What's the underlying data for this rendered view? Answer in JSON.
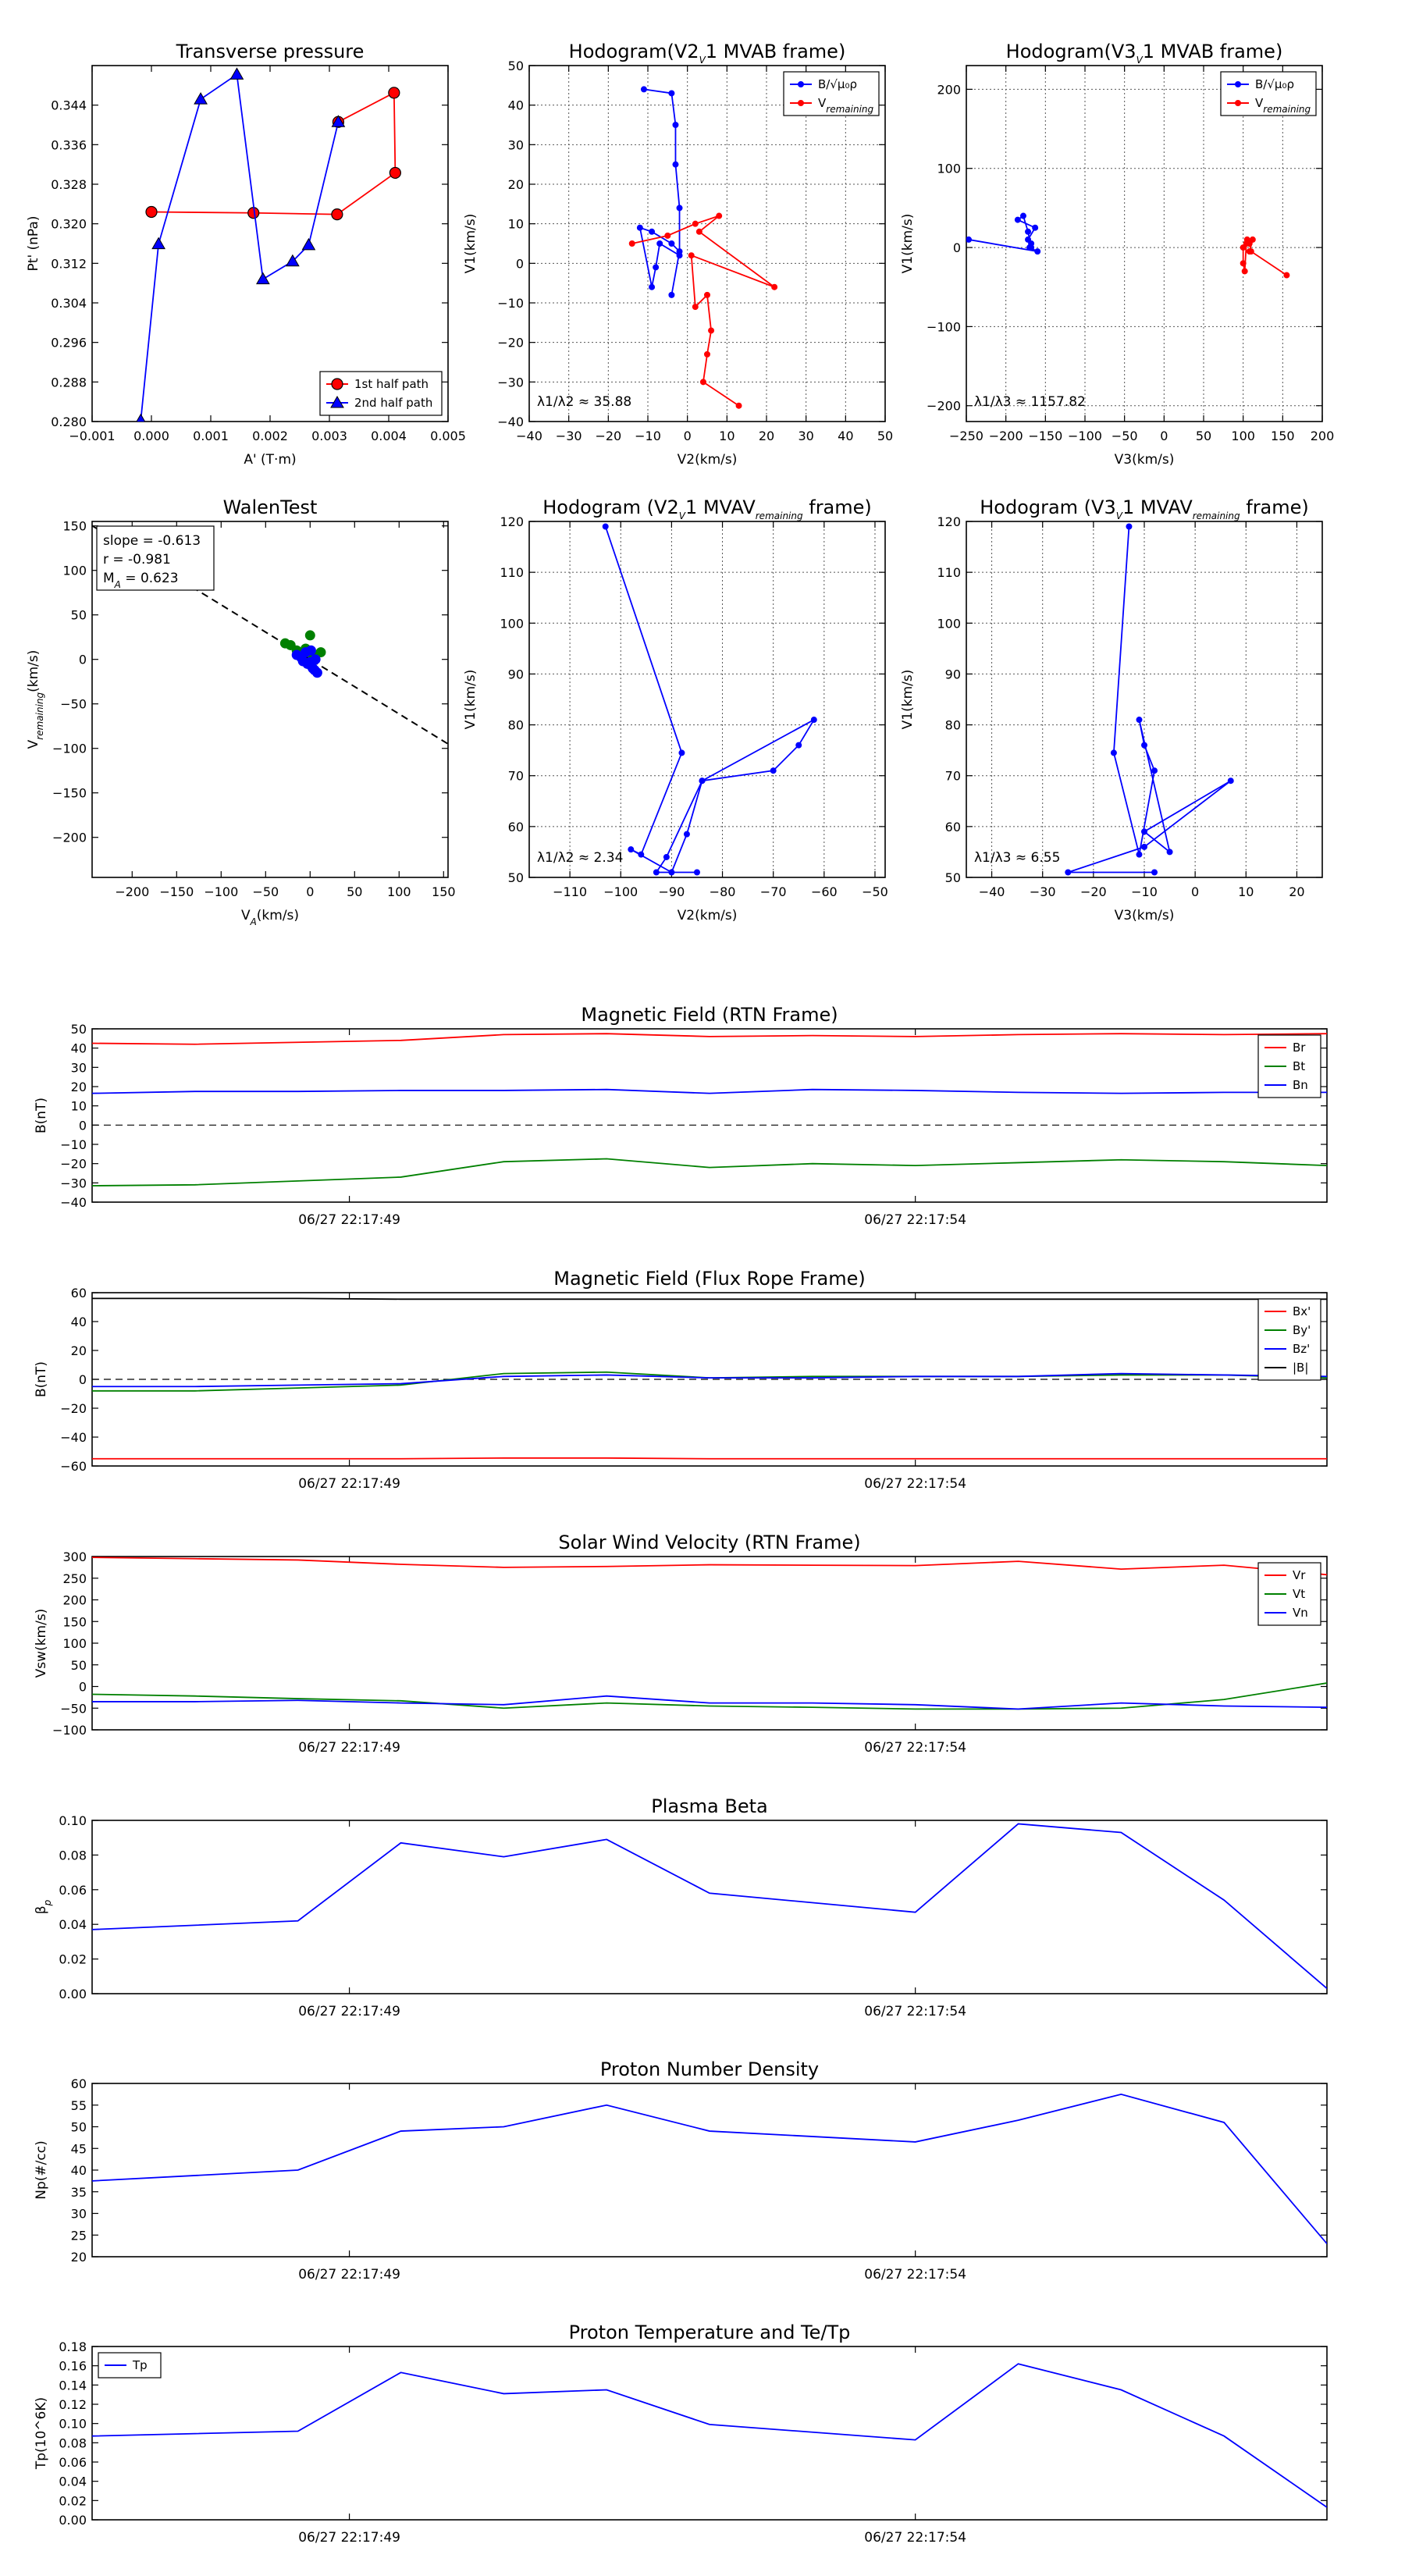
{
  "chart_data": [
    {
      "id": "pt",
      "type": "line",
      "title": "Transverse pressure",
      "xlabel": "A' (T·m)",
      "ylabel": "Pt' (nPa)",
      "xlim": [
        -0.001,
        0.005
      ],
      "ylim": [
        0.28,
        0.352
      ],
      "xticks": [
        -0.001,
        0.0,
        0.001,
        0.002,
        0.003,
        0.004,
        0.005
      ],
      "xtick_labels": [
        "−0.001",
        "0.000",
        "0.001",
        "0.002",
        "0.003",
        "0.004",
        "0.005"
      ],
      "yticks": [
        0.28,
        0.288,
        0.296,
        0.304,
        0.312,
        0.32,
        0.328,
        0.336,
        0.344
      ],
      "ytick_labels": [
        "0.280",
        "0.288",
        "0.296",
        "0.304",
        "0.312",
        "0.320",
        "0.328",
        "0.336",
        "0.344"
      ],
      "grid": false,
      "legend": "lower-right",
      "series": [
        {
          "name": "1st half path",
          "color": "#ff0000",
          "marker": "circle",
          "x": [
            0.0,
            0.00172,
            0.00313,
            0.00411,
            0.00409,
            0.00315
          ],
          "y": [
            0.3224,
            0.3222,
            0.3219,
            0.3303,
            0.3465,
            0.3406
          ]
        },
        {
          "name": "2nd half path",
          "color": "#0000ff",
          "marker": "triangle",
          "x": [
            -0.00018,
            0.00012,
            0.00083,
            0.00144,
            0.00188,
            0.00238,
            0.00265,
            0.00315
          ],
          "y": [
            0.2802,
            0.3159,
            0.3452,
            0.3502,
            0.3088,
            0.3124,
            0.3157,
            0.3406
          ]
        }
      ]
    },
    {
      "id": "h1",
      "type": "line",
      "title": "Hodogram(V2_V1 MVAB frame)",
      "xlabel": "V2(km/s)",
      "ylabel": "V1(km/s)",
      "xlim": [
        -40,
        50
      ],
      "ylim": [
        -40,
        50
      ],
      "xticks": [
        -40,
        -30,
        -20,
        -10,
        0,
        10,
        20,
        30,
        40,
        50
      ],
      "xtick_labels": [
        "−40",
        "−30",
        "−20",
        "−10",
        "0",
        "10",
        "20",
        "30",
        "40",
        "50"
      ],
      "yticks": [
        -40,
        -30,
        -20,
        -10,
        0,
        10,
        20,
        30,
        40,
        50
      ],
      "ytick_labels": [
        "−40",
        "−30",
        "−20",
        "−10",
        "0",
        "10",
        "20",
        "30",
        "40",
        "50"
      ],
      "grid": true,
      "legend": "top-right",
      "annotation": "λ1/λ2 ≈ 35.88",
      "series": [
        {
          "name": "B/√μ0ρ",
          "color": "#0000ff",
          "marker": "dot",
          "x": [
            -11,
            -4,
            -3,
            -3,
            -2,
            -2,
            -7,
            -8,
            -9,
            -12,
            -9,
            -4,
            -2,
            -4
          ],
          "y": [
            44,
            43,
            35,
            25,
            14,
            2,
            5,
            -1,
            -6,
            9,
            8,
            5,
            3,
            -8
          ]
        },
        {
          "name": "V_remaining",
          "color": "#ff0000",
          "marker": "dot",
          "x": [
            -14,
            -5,
            2,
            8,
            3,
            22,
            1,
            2,
            5,
            6,
            5,
            4,
            13
          ],
          "y": [
            5,
            7,
            10,
            12,
            8,
            -6,
            2,
            -11,
            -8,
            -17,
            -23,
            -30,
            -36
          ]
        }
      ]
    },
    {
      "id": "h2",
      "type": "line",
      "title": "Hodogram(V3_V1 MVAB frame)",
      "xlabel": "V3(km/s)",
      "ylabel": "V1(km/s)",
      "xlim": [
        -250,
        200
      ],
      "ylim": [
        -220,
        230
      ],
      "xticks": [
        -250,
        -200,
        -150,
        -100,
        -50,
        0,
        50,
        100,
        150,
        200
      ],
      "xtick_labels": [
        "−250",
        "−200",
        "−150",
        "−100",
        "−50",
        "0",
        "50",
        "100",
        "150",
        "200"
      ],
      "yticks": [
        -200,
        -100,
        0,
        100,
        200
      ],
      "ytick_labels": [
        "−200",
        "−100",
        "0",
        "100",
        "200"
      ],
      "grid": true,
      "legend": "top-right",
      "annotation": "λ1/λ3 ≈ 1157.82",
      "series": [
        {
          "name": "B/√μ0ρ",
          "color": "#0000ff",
          "marker": "dot",
          "x": [
            -247,
            -160,
            -170,
            -168,
            -172,
            -163,
            -185,
            -178,
            -172,
            -168
          ],
          "y": [
            10,
            -5,
            0,
            5,
            10,
            25,
            35,
            40,
            20,
            0
          ]
        },
        {
          "name": "V_remaining",
          "color": "#ff0000",
          "marker": "dot",
          "x": [
            155,
            110,
            108,
            105,
            100,
            100,
            102,
            104,
            112,
            108
          ],
          "y": [
            -35,
            -5,
            5,
            10,
            0,
            -20,
            -30,
            5,
            10,
            -5
          ]
        }
      ]
    },
    {
      "id": "walen",
      "type": "scatter",
      "title": "WalenTest",
      "xlabel": "V_A(km/s)",
      "ylabel": "V_remaining(km/s)",
      "xlim": [
        -245,
        155
      ],
      "ylim": [
        -245,
        155
      ],
      "xticks": [
        -200,
        -150,
        -100,
        -50,
        0,
        50,
        100,
        150
      ],
      "xtick_labels": [
        "−200",
        "−150",
        "−100",
        "−50",
        "0",
        "50",
        "100",
        "150"
      ],
      "yticks": [
        -200,
        -150,
        -100,
        -50,
        0,
        50,
        100,
        150
      ],
      "ytick_labels": [
        "−200",
        "−150",
        "−100",
        "−50",
        "0",
        "50",
        "100",
        "150"
      ],
      "grid": false,
      "fit": {
        "slope": -0.613,
        "x": [
          -245,
          155
        ]
      },
      "stats": [
        "slope = -0.613",
        "r = -0.981",
        "M_A = 0.623"
      ],
      "series": [
        {
          "name": "green",
          "color": "#008000",
          "x": [
            -28,
            -22,
            -15,
            0,
            12,
            3,
            -5
          ],
          "y": [
            18,
            16,
            10,
            27,
            8,
            4,
            12
          ]
        },
        {
          "name": "blue",
          "color": "#0000ff",
          "x": [
            -15,
            -10,
            -8,
            -5,
            0,
            2,
            5,
            8,
            -3,
            3,
            6,
            1
          ],
          "y": [
            5,
            2,
            -2,
            8,
            -3,
            -8,
            -12,
            -15,
            -5,
            -10,
            0,
            10
          ]
        }
      ]
    },
    {
      "id": "h3",
      "type": "line",
      "title": "Hodogram (V2_V1 MVAV_remaining frame)",
      "xlabel": "V2(km/s)",
      "ylabel": "V1(km/s)",
      "xlim": [
        -118,
        -48
      ],
      "ylim": [
        50,
        120
      ],
      "xticks": [
        -110,
        -100,
        -90,
        -80,
        -70,
        -60,
        -50
      ],
      "xtick_labels": [
        "−110",
        "−100",
        "−90",
        "−80",
        "−70",
        "−60",
        "−50"
      ],
      "yticks": [
        50,
        60,
        70,
        80,
        90,
        100,
        110,
        120
      ],
      "ytick_labels": [
        "50",
        "60",
        "70",
        "80",
        "90",
        "100",
        "110",
        "120"
      ],
      "grid": true,
      "legend": "none",
      "annotation": "λ1/λ2 ≈ 2.34",
      "series": [
        {
          "name": "V",
          "color": "#0000ff",
          "marker": "dot",
          "x": [
            -103,
            -88,
            -96,
            -98,
            -90,
            -87,
            -84,
            -70,
            -65,
            -62,
            -84,
            -91,
            -93,
            -85
          ],
          "y": [
            119,
            74.5,
            54.5,
            55.5,
            51,
            58.5,
            69,
            71,
            76,
            81,
            69,
            54,
            51,
            51
          ]
        }
      ]
    },
    {
      "id": "h4",
      "type": "line",
      "title": "Hodogram (V3_V1 MVAV_remaining frame)",
      "xlabel": "V3(km/s)",
      "ylabel": "V1(km/s)",
      "xlim": [
        -45,
        25
      ],
      "ylim": [
        50,
        120
      ],
      "xticks": [
        -40,
        -30,
        -20,
        -10,
        0,
        10,
        20
      ],
      "xtick_labels": [
        "−40",
        "−30",
        "−20",
        "−10",
        "0",
        "10",
        "20"
      ],
      "yticks": [
        50,
        60,
        70,
        80,
        90,
        100,
        110,
        120
      ],
      "ytick_labels": [
        "50",
        "60",
        "70",
        "80",
        "90",
        "100",
        "110",
        "120"
      ],
      "grid": true,
      "legend": "none",
      "annotation": "λ1/λ3 ≈ 6.55",
      "series": [
        {
          "name": "V",
          "color": "#0000ff",
          "marker": "dot",
          "x": [
            -13,
            -16,
            -11,
            -8,
            -10,
            -11,
            -5,
            -10,
            7,
            -10,
            -25,
            -8
          ],
          "y": [
            119,
            74.5,
            54.5,
            71,
            76,
            81,
            55,
            59,
            69,
            56,
            51,
            51
          ]
        }
      ]
    },
    {
      "id": "ts_b_rtn",
      "type": "line",
      "title": "Magnetic Field (RTN Frame)",
      "ylabel": "B(nT)",
      "ylim": [
        -40,
        50
      ],
      "yticks": [
        -40,
        -30,
        -20,
        -10,
        0,
        10,
        20,
        30,
        40,
        50
      ],
      "ytick_labels": [
        "−40",
        "−30",
        "−20",
        "−10",
        "0",
        "10",
        "20",
        "30",
        "40",
        "50"
      ],
      "xlim": [
        0,
        12
      ],
      "xticks": [
        2.5,
        8.0
      ],
      "xtick_labels": [
        "06/27 22:17:49",
        "06/27 22:17:54"
      ],
      "zero_line": true,
      "legend": "top-right",
      "series": [
        {
          "name": "Br",
          "color": "#ff0000",
          "y": [
            42.5,
            42,
            43,
            44,
            47,
            47.5,
            46,
            46.5,
            46,
            47,
            47.5,
            47,
            47.5
          ]
        },
        {
          "name": "Bt",
          "color": "#008000",
          "y": [
            -31.5,
            -31,
            -29,
            -27,
            -19,
            -17.5,
            -22,
            -20,
            -21,
            -19.5,
            -18,
            -19,
            -21
          ]
        },
        {
          "name": "Bn",
          "color": "#0000ff",
          "y": [
            16.5,
            17.5,
            17.5,
            18,
            18,
            18.5,
            16.5,
            18.5,
            18,
            17,
            16.5,
            17,
            17
          ]
        }
      ]
    },
    {
      "id": "ts_b_fr",
      "type": "line",
      "title": "Magnetic Field (Flux Rope Frame)",
      "ylabel": "B(nT)",
      "ylim": [
        -60,
        60
      ],
      "yticks": [
        -60,
        -40,
        -20,
        0,
        20,
        40,
        60
      ],
      "ytick_labels": [
        "−60",
        "−40",
        "−20",
        "0",
        "20",
        "40",
        "60"
      ],
      "xlim": [
        0,
        12
      ],
      "xticks": [
        2.5,
        8.0
      ],
      "xtick_labels": [
        "06/27 22:17:49",
        "06/27 22:17:54"
      ],
      "zero_line": true,
      "legend": "top-right",
      "series": [
        {
          "name": "Bx'",
          "color": "#ff0000",
          "y": [
            -55,
            -55,
            -55,
            -55,
            -54.5,
            -54.5,
            -55,
            -55,
            -55,
            -55,
            -55,
            -55,
            -55
          ]
        },
        {
          "name": "By'",
          "color": "#008000",
          "y": [
            -8,
            -8,
            -6,
            -4,
            4,
            5,
            1,
            2,
            2,
            2,
            3,
            3,
            1
          ]
        },
        {
          "name": "Bz'",
          "color": "#0000ff",
          "y": [
            -5,
            -5,
            -4,
            -3,
            2,
            3,
            1,
            1,
            2,
            2,
            4,
            3,
            2
          ]
        },
        {
          "name": "|B|",
          "color": "#000000",
          "y": [
            56,
            56,
            56,
            55.5,
            55.5,
            55.5,
            55.5,
            55.5,
            55.5,
            55.5,
            55.5,
            55.5,
            55.5
          ]
        }
      ]
    },
    {
      "id": "ts_v",
      "type": "line",
      "title": "Solar Wind Velocity (RTN Frame)",
      "ylabel": "Vsw(km/s)",
      "ylim": [
        -100,
        300
      ],
      "yticks": [
        -100,
        -50,
        0,
        50,
        100,
        150,
        200,
        250,
        300
      ],
      "ytick_labels": [
        "−100",
        "−50",
        "0",
        "50",
        "100",
        "150",
        "200",
        "250",
        "300"
      ],
      "xlim": [
        0,
        12
      ],
      "xticks": [
        2.5,
        8.0
      ],
      "xtick_labels": [
        "06/27 22:17:49",
        "06/27 22:17:54"
      ],
      "legend": "top-right",
      "series": [
        {
          "name": "Vr",
          "color": "#ff0000",
          "y": [
            298,
            295,
            292,
            282,
            275,
            277,
            281,
            280,
            279,
            289,
            271,
            280,
            258
          ]
        },
        {
          "name": "Vt",
          "color": "#008000",
          "y": [
            -18,
            -22,
            -28,
            -33,
            -50,
            -38,
            -45,
            -48,
            -52,
            -52,
            -50,
            -30,
            8
          ]
        },
        {
          "name": "Vn",
          "color": "#0000ff",
          "y": [
            -35,
            -35,
            -32,
            -38,
            -42,
            -22,
            -38,
            -38,
            -42,
            -52,
            -38,
            -45,
            -48
          ]
        }
      ]
    },
    {
      "id": "ts_beta",
      "type": "line",
      "title": "Plasma Beta",
      "ylabel": "β_p",
      "ylim": [
        0.0,
        0.1
      ],
      "yticks": [
        0.0,
        0.02,
        0.04,
        0.06,
        0.08,
        0.1
      ],
      "ytick_labels": [
        "0.00",
        "0.02",
        "0.04",
        "0.06",
        "0.08",
        "0.10"
      ],
      "xlim": [
        0,
        12
      ],
      "xticks": [
        2.5,
        8.0
      ],
      "xtick_labels": [
        "06/27 22:17:49",
        "06/27 22:17:54"
      ],
      "legend": "none",
      "series": [
        {
          "name": "beta",
          "color": "#0000ff",
          "x": [
            0,
            2,
            3,
            4,
            5,
            6,
            8,
            9,
            10,
            11,
            12
          ],
          "y": [
            0.037,
            0.042,
            0.087,
            0.079,
            0.089,
            0.058,
            0.047,
            0.098,
            0.093,
            0.054,
            0.003
          ]
        }
      ]
    },
    {
      "id": "ts_np",
      "type": "line",
      "title": "Proton Number Density",
      "ylabel": "Np(#/cc)",
      "ylim": [
        20,
        60
      ],
      "yticks": [
        20,
        25,
        30,
        35,
        40,
        45,
        50,
        55,
        60
      ],
      "ytick_labels": [
        "20",
        "25",
        "30",
        "35",
        "40",
        "45",
        "50",
        "55",
        "60"
      ],
      "xlim": [
        0,
        12
      ],
      "xticks": [
        2.5,
        8.0
      ],
      "xtick_labels": [
        "06/27 22:17:49",
        "06/27 22:17:54"
      ],
      "legend": "none",
      "series": [
        {
          "name": "Np",
          "color": "#0000ff",
          "x": [
            0,
            2,
            3,
            4,
            5,
            6,
            8,
            9,
            10,
            11,
            12
          ],
          "y": [
            37.5,
            40,
            49,
            50,
            55,
            49,
            46.5,
            51.5,
            57.5,
            51,
            23
          ]
        }
      ]
    },
    {
      "id": "ts_tp",
      "type": "line",
      "title": "Proton Temperature and Te/Tp",
      "ylabel": "Tp(10^6K)",
      "ylim": [
        0.0,
        0.18
      ],
      "yticks": [
        0.0,
        0.02,
        0.04,
        0.06,
        0.08,
        0.1,
        0.12,
        0.14,
        0.16,
        0.18
      ],
      "ytick_labels": [
        "0.00",
        "0.02",
        "0.04",
        "0.06",
        "0.08",
        "0.10",
        "0.12",
        "0.14",
        "0.16",
        "0.18"
      ],
      "xlim": [
        0,
        12
      ],
      "xticks": [
        2.5,
        8.0
      ],
      "xtick_labels": [
        "06/27 22:17:49",
        "06/27 22:17:54"
      ],
      "legend": "top-left",
      "series": [
        {
          "name": "Tp",
          "color": "#0000ff",
          "x": [
            0,
            2,
            3,
            4,
            5,
            6,
            8,
            9,
            10,
            11,
            12
          ],
          "y": [
            0.087,
            0.092,
            0.153,
            0.131,
            0.135,
            0.099,
            0.083,
            0.162,
            0.135,
            0.087,
            0.013
          ]
        }
      ]
    }
  ]
}
